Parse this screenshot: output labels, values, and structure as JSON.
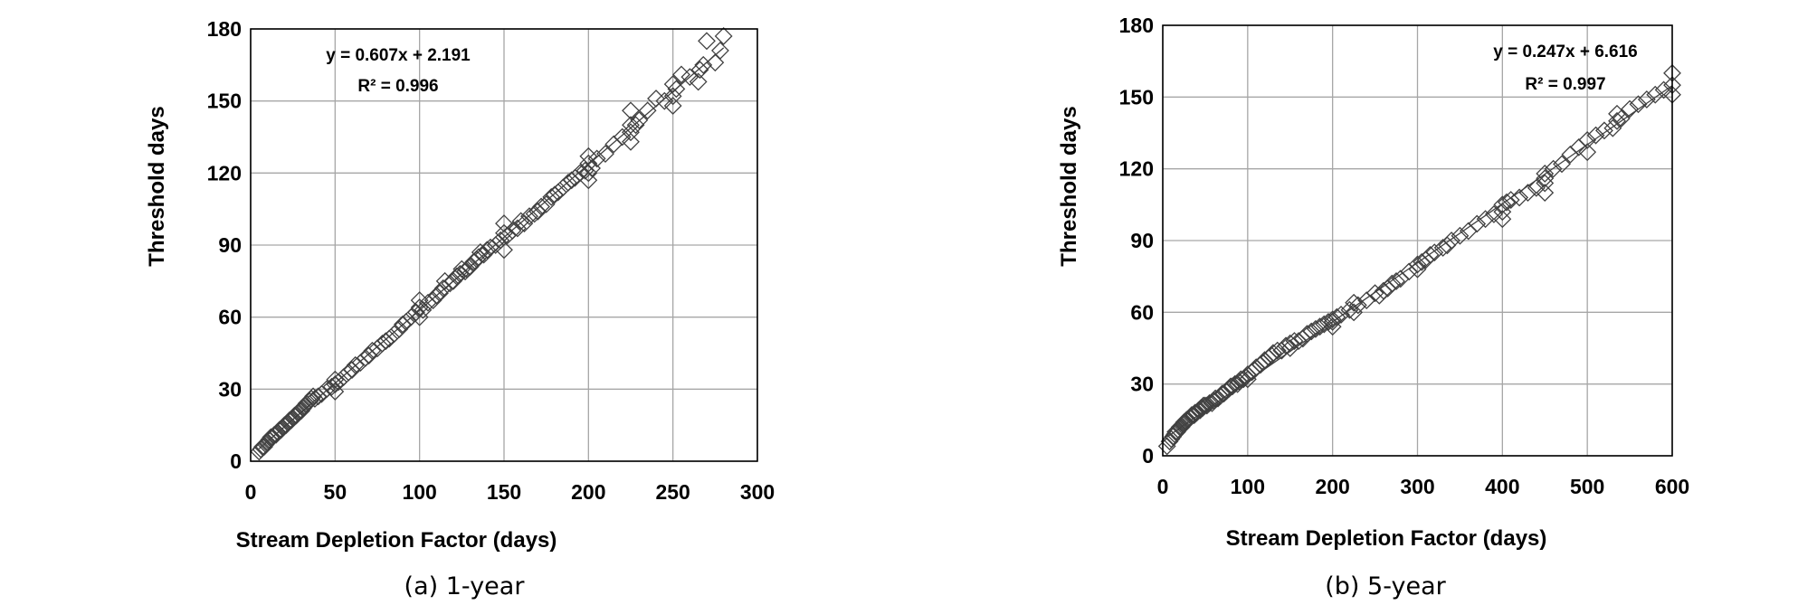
{
  "chart_data": [
    {
      "type": "scatter",
      "caption": "(a) 1-year",
      "xlabel": "Stream Depletion Factor (days)",
      "ylabel": "Threshold days",
      "xlim": [
        0,
        300
      ],
      "ylim": [
        0,
        180
      ],
      "xticks": [
        "0",
        "50",
        "100",
        "150",
        "200",
        "250",
        "300"
      ],
      "yticks": [
        "0",
        "30",
        "60",
        "90",
        "120",
        "150",
        "180"
      ],
      "grid": true,
      "marker": "open-diamond",
      "equation": "y = 0.607x + 2.191",
      "r2": "R² = 0.996",
      "trendline": {
        "slope": 0.607,
        "intercept": 2.191
      },
      "points": [
        [
          5,
          4
        ],
        [
          6,
          5
        ],
        [
          7,
          6
        ],
        [
          8,
          6
        ],
        [
          9,
          7
        ],
        [
          10,
          8
        ],
        [
          11,
          9
        ],
        [
          12,
          10
        ],
        [
          13,
          10
        ],
        [
          14,
          11
        ],
        [
          15,
          11
        ],
        [
          16,
          12
        ],
        [
          17,
          13
        ],
        [
          18,
          13
        ],
        [
          19,
          14
        ],
        [
          20,
          15
        ],
        [
          21,
          15
        ],
        [
          22,
          16
        ],
        [
          23,
          17
        ],
        [
          24,
          17
        ],
        [
          25,
          18
        ],
        [
          26,
          19
        ],
        [
          27,
          19
        ],
        [
          28,
          20
        ],
        [
          29,
          21
        ],
        [
          30,
          21
        ],
        [
          31,
          22
        ],
        [
          32,
          23
        ],
        [
          33,
          24
        ],
        [
          35,
          25
        ],
        [
          36,
          26
        ],
        [
          37,
          27
        ],
        [
          38,
          26
        ],
        [
          40,
          27
        ],
        [
          42,
          28
        ],
        [
          45,
          30
        ],
        [
          48,
          31
        ],
        [
          50,
          32
        ],
        [
          50,
          29
        ],
        [
          50,
          34
        ],
        [
          52,
          33
        ],
        [
          55,
          35
        ],
        [
          58,
          37
        ],
        [
          60,
          38
        ],
        [
          62,
          40
        ],
        [
          65,
          41
        ],
        [
          68,
          43
        ],
        [
          70,
          44
        ],
        [
          72,
          46
        ],
        [
          75,
          47
        ],
        [
          78,
          49
        ],
        [
          80,
          50
        ],
        [
          82,
          51
        ],
        [
          85,
          53
        ],
        [
          88,
          55
        ],
        [
          90,
          57
        ],
        [
          92,
          58
        ],
        [
          95,
          60
        ],
        [
          98,
          62
        ],
        [
          100,
          60
        ],
        [
          100,
          64
        ],
        [
          100,
          67
        ],
        [
          102,
          63
        ],
        [
          105,
          66
        ],
        [
          108,
          67
        ],
        [
          110,
          69
        ],
        [
          112,
          70
        ],
        [
          114,
          72
        ],
        [
          115,
          75
        ],
        [
          118,
          74
        ],
        [
          120,
          75
        ],
        [
          122,
          77
        ],
        [
          124,
          78
        ],
        [
          125,
          80
        ],
        [
          127,
          79
        ],
        [
          128,
          80
        ],
        [
          130,
          81
        ],
        [
          132,
          83
        ],
        [
          134,
          84
        ],
        [
          135,
          85
        ],
        [
          136,
          87
        ],
        [
          138,
          86
        ],
        [
          140,
          88
        ],
        [
          142,
          89
        ],
        [
          145,
          90
        ],
        [
          148,
          92
        ],
        [
          150,
          88
        ],
        [
          150,
          95
        ],
        [
          150,
          99
        ],
        [
          152,
          94
        ],
        [
          155,
          96
        ],
        [
          158,
          97
        ],
        [
          160,
          100
        ],
        [
          162,
          99
        ],
        [
          165,
          102
        ],
        [
          168,
          103
        ],
        [
          170,
          104
        ],
        [
          172,
          106
        ],
        [
          175,
          107
        ],
        [
          178,
          110
        ],
        [
          180,
          111
        ],
        [
          182,
          112
        ],
        [
          185,
          114
        ],
        [
          188,
          116
        ],
        [
          190,
          117
        ],
        [
          192,
          118
        ],
        [
          195,
          120
        ],
        [
          198,
          121
        ],
        [
          200,
          117
        ],
        [
          200,
          120
        ],
        [
          200,
          124
        ],
        [
          200,
          127
        ],
        [
          202,
          122
        ],
        [
          205,
          126
        ],
        [
          210,
          128
        ],
        [
          215,
          132
        ],
        [
          220,
          135
        ],
        [
          225,
          133
        ],
        [
          225,
          137
        ],
        [
          225,
          140
        ],
        [
          225,
          146
        ],
        [
          228,
          140
        ],
        [
          230,
          142
        ],
        [
          235,
          146
        ],
        [
          240,
          151
        ],
        [
          245,
          150
        ],
        [
          250,
          148
        ],
        [
          250,
          152
        ],
        [
          250,
          157
        ],
        [
          252,
          155
        ],
        [
          255,
          161
        ],
        [
          260,
          160
        ],
        [
          265,
          158
        ],
        [
          266,
          163
        ],
        [
          268,
          165
        ],
        [
          270,
          175
        ],
        [
          275,
          166
        ],
        [
          278,
          171
        ],
        [
          280,
          177
        ]
      ]
    },
    {
      "type": "scatter",
      "caption": "(b) 5-year",
      "xlabel": "Stream Depletion Factor (days)",
      "ylabel": "Threshold days",
      "xlim": [
        0,
        600
      ],
      "ylim": [
        0,
        180
      ],
      "xticks": [
        "0",
        "100",
        "200",
        "300",
        "400",
        "500",
        "600"
      ],
      "yticks": [
        "0",
        "30",
        "60",
        "90",
        "120",
        "150",
        "180"
      ],
      "grid": true,
      "marker": "open-diamond",
      "equation": "y = 0.247x + 6.616",
      "r2": "R² = 0.997",
      "trendline": {
        "slope": 0.247,
        "intercept": 6.616
      },
      "points": [
        [
          5,
          4
        ],
        [
          8,
          6
        ],
        [
          10,
          7
        ],
        [
          12,
          8
        ],
        [
          14,
          9
        ],
        [
          15,
          10
        ],
        [
          17,
          10
        ],
        [
          18,
          11
        ],
        [
          20,
          12
        ],
        [
          22,
          12
        ],
        [
          24,
          13
        ],
        [
          25,
          14
        ],
        [
          27,
          14
        ],
        [
          28,
          15
        ],
        [
          30,
          15
        ],
        [
          32,
          16
        ],
        [
          34,
          17
        ],
        [
          35,
          17
        ],
        [
          37,
          17
        ],
        [
          38,
          18
        ],
        [
          40,
          18
        ],
        [
          42,
          19
        ],
        [
          44,
          19
        ],
        [
          45,
          20
        ],
        [
          47,
          20
        ],
        [
          48,
          21
        ],
        [
          50,
          21
        ],
        [
          52,
          21
        ],
        [
          55,
          22
        ],
        [
          58,
          22
        ],
        [
          60,
          23
        ],
        [
          62,
          24
        ],
        [
          65,
          24
        ],
        [
          68,
          25
        ],
        [
          70,
          26
        ],
        [
          72,
          26
        ],
        [
          75,
          27
        ],
        [
          78,
          28
        ],
        [
          80,
          29
        ],
        [
          82,
          29
        ],
        [
          85,
          30
        ],
        [
          88,
          30
        ],
        [
          90,
          31
        ],
        [
          92,
          32
        ],
        [
          95,
          32
        ],
        [
          98,
          33
        ],
        [
          100,
          32
        ],
        [
          100,
          34
        ],
        [
          105,
          35
        ],
        [
          108,
          36
        ],
        [
          110,
          37
        ],
        [
          115,
          38
        ],
        [
          118,
          39
        ],
        [
          120,
          40
        ],
        [
          125,
          41
        ],
        [
          128,
          42
        ],
        [
          130,
          43
        ],
        [
          135,
          44
        ],
        [
          140,
          44
        ],
        [
          145,
          46
        ],
        [
          150,
          45
        ],
        [
          150,
          47
        ],
        [
          155,
          48
        ],
        [
          160,
          48
        ],
        [
          165,
          49
        ],
        [
          170,
          51
        ],
        [
          175,
          52
        ],
        [
          180,
          53
        ],
        [
          185,
          54
        ],
        [
          190,
          55
        ],
        [
          195,
          56
        ],
        [
          200,
          54
        ],
        [
          200,
          56
        ],
        [
          200,
          57
        ],
        [
          205,
          58
        ],
        [
          210,
          59
        ],
        [
          220,
          61
        ],
        [
          225,
          60
        ],
        [
          225,
          64
        ],
        [
          230,
          63
        ],
        [
          240,
          65
        ],
        [
          250,
          68
        ],
        [
          255,
          67
        ],
        [
          260,
          69
        ],
        [
          265,
          70
        ],
        [
          270,
          72
        ],
        [
          275,
          73
        ],
        [
          280,
          74
        ],
        [
          290,
          77
        ],
        [
          300,
          78
        ],
        [
          300,
          80
        ],
        [
          305,
          81
        ],
        [
          310,
          82
        ],
        [
          315,
          84
        ],
        [
          320,
          85
        ],
        [
          330,
          87
        ],
        [
          335,
          88
        ],
        [
          340,
          90
        ],
        [
          350,
          92
        ],
        [
          360,
          94
        ],
        [
          370,
          97
        ],
        [
          380,
          99
        ],
        [
          390,
          101
        ],
        [
          400,
          99
        ],
        [
          400,
          102
        ],
        [
          400,
          105
        ],
        [
          405,
          106
        ],
        [
          410,
          107
        ],
        [
          420,
          108
        ],
        [
          430,
          110
        ],
        [
          440,
          112
        ],
        [
          450,
          110
        ],
        [
          450,
          114
        ],
        [
          450,
          116
        ],
        [
          450,
          118
        ],
        [
          460,
          120
        ],
        [
          470,
          122
        ],
        [
          480,
          126
        ],
        [
          490,
          129
        ],
        [
          500,
          127
        ],
        [
          500,
          132
        ],
        [
          510,
          134
        ],
        [
          520,
          136
        ],
        [
          530,
          137
        ],
        [
          535,
          140
        ],
        [
          535,
          143
        ],
        [
          540,
          141
        ],
        [
          550,
          145
        ],
        [
          560,
          147
        ],
        [
          570,
          149
        ],
        [
          580,
          151
        ],
        [
          590,
          153
        ],
        [
          600,
          151
        ],
        [
          600,
          155
        ],
        [
          600,
          160
        ]
      ]
    }
  ]
}
